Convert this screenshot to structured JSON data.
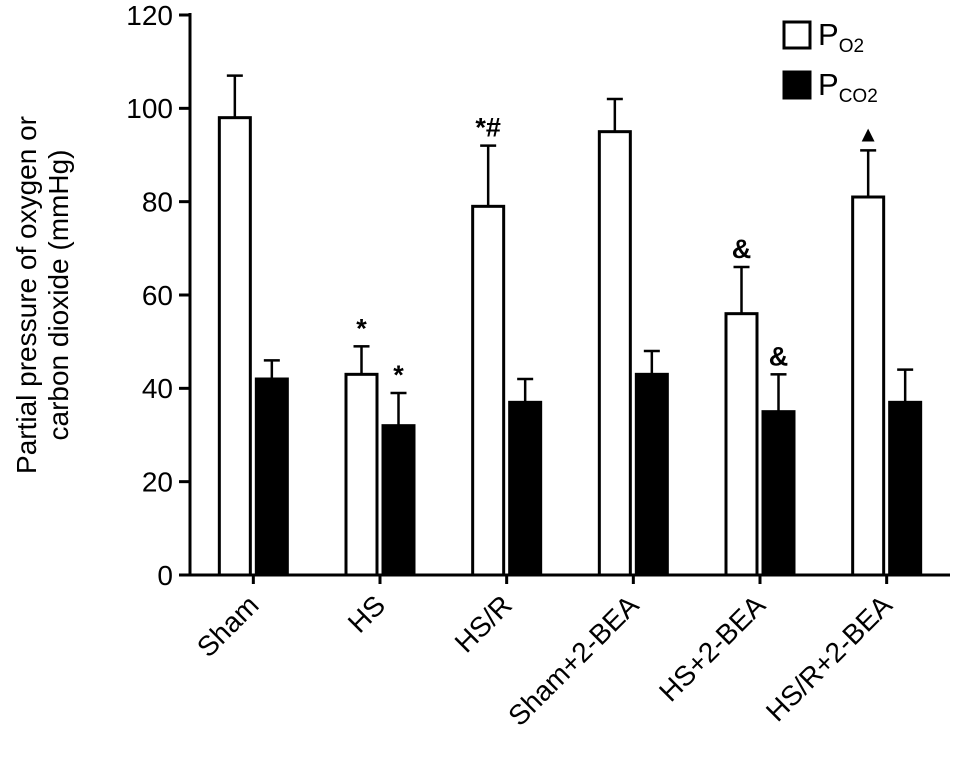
{
  "chart_data": {
    "type": "bar",
    "title": "",
    "ylabel": "Partial pressure of oxygen or carbon dioxide (mmHg)",
    "ylabel_lines": [
      "Partial pressure of oxygen or",
      "carbon dioxide (mmHg)"
    ],
    "xlabel": "",
    "ylim": [
      0,
      120
    ],
    "yticks": [
      0,
      20,
      40,
      60,
      80,
      100,
      120
    ],
    "grid": false,
    "legend_position": "top-right",
    "axis_color": "#000000",
    "categories": [
      "Sham",
      "HS",
      "HS/R",
      "Sham+2-BEA",
      "HS+2-BEA",
      "HS/R+2-BEA"
    ],
    "series": [
      {
        "name": "PO2",
        "legend_base": "P",
        "legend_sub": "O2",
        "color": "#ffffff",
        "values": [
          98,
          43,
          79,
          95,
          56,
          81
        ],
        "errors": [
          9,
          6,
          13,
          7,
          10,
          10
        ],
        "annotations": [
          "",
          "*",
          "*#",
          "",
          "&",
          "▲"
        ]
      },
      {
        "name": "PCO2",
        "legend_base": "P",
        "legend_sub": "CO2",
        "color": "#000000",
        "values": [
          42,
          32,
          37,
          43,
          35,
          37
        ],
        "errors": [
          4,
          7,
          5,
          5,
          8,
          7
        ],
        "annotations": [
          "",
          "*",
          "",
          "",
          "&",
          ""
        ]
      }
    ]
  }
}
